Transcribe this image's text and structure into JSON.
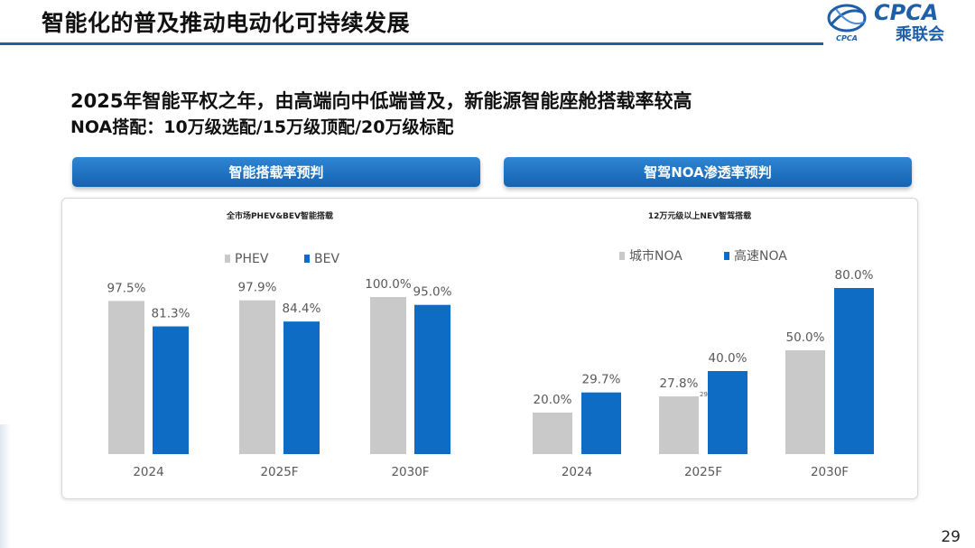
{
  "slide": {
    "title": "智能化的普及推动电动化可持续发展",
    "heading": "2025年智能平权之年，由高端向中低端普及，新能源智能座舱搭载率较高",
    "subheading": "NOA搭配：10万级选配/15万级顶配/20万级标配",
    "page_number": "29"
  },
  "logo": {
    "text": "CPCA",
    "subtext": "乘联会",
    "mark_text": "CPCA"
  },
  "left_banner": "智能搭载率预判",
  "right_banner": "智驾NOA渗透率预判",
  "colors": {
    "grey": "#c9c9c9",
    "blue": "#0f6cc5",
    "banner": "#1d6fc0"
  },
  "chart_data": [
    {
      "type": "bar",
      "title": "全市场PHEV&BEV智能搭载",
      "categories": [
        "2024",
        "2025F",
        "2030F"
      ],
      "series": [
        {
          "name": "PHEV",
          "values": [
            97.5,
            97.9,
            100.0
          ],
          "labels": [
            "97.5%",
            "97.9%",
            "100.0%"
          ],
          "color": "#c9c9c9"
        },
        {
          "name": "BEV",
          "values": [
            81.3,
            84.4,
            95.0
          ],
          "labels": [
            "81.3%",
            "84.4%",
            "95.0%"
          ],
          "color": "#0f6cc5"
        }
      ],
      "ylim": [
        0,
        100
      ],
      "legend": "top-left"
    },
    {
      "type": "bar",
      "title": "12万元级以上NEV智驾搭载",
      "categories": [
        "2024",
        "2025F",
        "2030F"
      ],
      "series": [
        {
          "name": "城市NOA",
          "values": [
            20.0,
            27.8,
            50.0
          ],
          "labels": [
            "20.0%",
            "27.8%",
            "50.0%"
          ],
          "color": "#c9c9c9"
        },
        {
          "name": "高速NOA",
          "values": [
            29.7,
            40.0,
            80.0
          ],
          "labels": [
            "29.7%",
            "40.0%",
            "80.0%"
          ],
          "color": "#0f6cc5"
        }
      ],
      "ylim": [
        0,
        100
      ],
      "annotation": "29",
      "legend": "top-left"
    }
  ]
}
